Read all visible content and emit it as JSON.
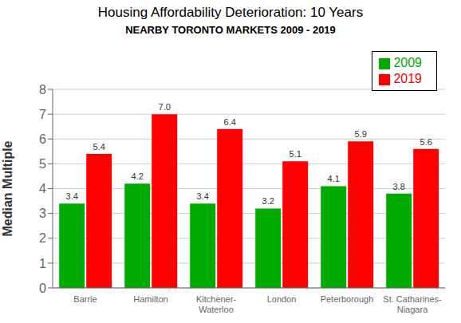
{
  "chart_data": {
    "type": "bar",
    "title": "Housing Affordability Deterioration: 10 Years",
    "subtitle": "NEARBY TORONTO MARKETS 2009 - 2019",
    "categories": [
      "Barrie",
      "Hamilton",
      "Kitchener-\nWaterloo",
      "London",
      "Peterborough",
      "St. Catharines-\nNiagara"
    ],
    "series": [
      {
        "name": "2009",
        "color": "#00aa00",
        "values": [
          3.4,
          4.2,
          3.4,
          3.2,
          4.1,
          3.8
        ],
        "value_labels": [
          "3.4",
          "4.2",
          "3.4",
          "3.2",
          "4.1",
          "3.8"
        ]
      },
      {
        "name": "2019",
        "color": "#ff0000",
        "values": [
          5.4,
          7.0,
          6.4,
          5.1,
          5.9,
          5.6
        ],
        "value_labels": [
          "5.4",
          "7.0",
          "6.4",
          "5.1",
          "5.9",
          "5.6"
        ]
      }
    ],
    "ylabel": "Median Multiple",
    "ylim": [
      0,
      8
    ],
    "yticks": [
      0,
      1,
      2,
      3,
      4,
      5,
      6,
      7,
      8
    ],
    "grid": true,
    "legend": "upper right",
    "data_labels": true
  }
}
